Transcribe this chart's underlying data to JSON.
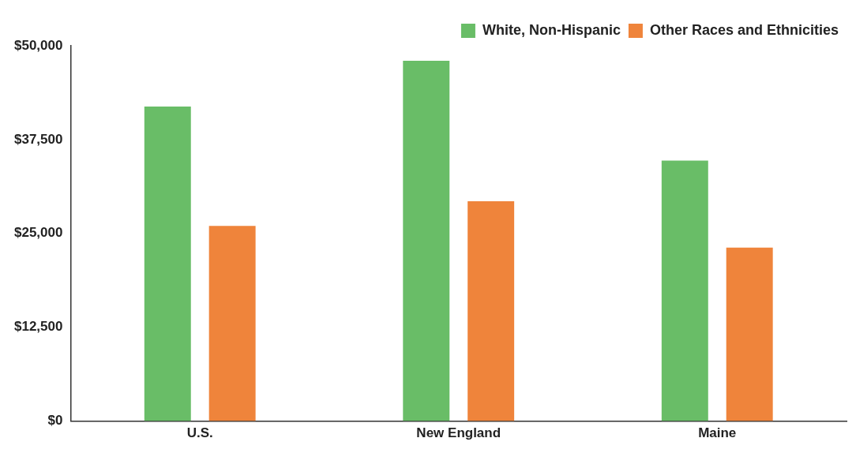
{
  "chart_data": {
    "type": "bar",
    "categories": [
      "U.S.",
      "New England",
      "Maine"
    ],
    "series": [
      {
        "name": "White, Non-Hispanic",
        "color": "#69bd67",
        "values": [
          41900,
          48000,
          34700
        ]
      },
      {
        "name": "Other Races and Ethnicities",
        "color": "#ef843b",
        "values": [
          26000,
          29300,
          23100
        ]
      }
    ],
    "ylim": [
      0,
      50000
    ],
    "yticks": [
      {
        "value": 0,
        "label": "$0"
      },
      {
        "value": 12500,
        "label": "$12,500"
      },
      {
        "value": 25000,
        "label": "$25,000"
      },
      {
        "value": 37500,
        "label": "$37,500"
      },
      {
        "value": 50000,
        "label": "$50,000"
      }
    ],
    "grid": false,
    "legend": "top right"
  }
}
